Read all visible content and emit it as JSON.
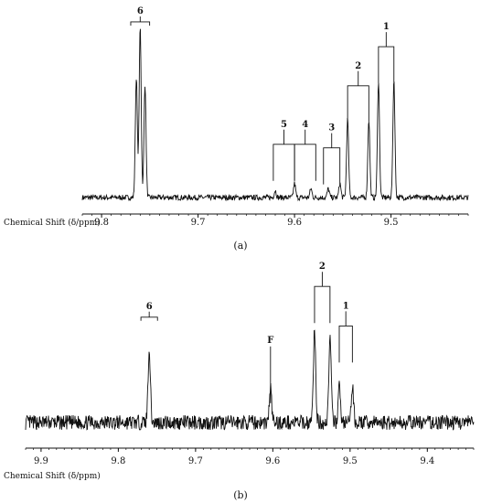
{
  "chart_data": [
    {
      "type": "line",
      "panel_label": "(a)",
      "xlabel": "Chemical Shift (δ/ppm)",
      "xlim": [
        9.82,
        9.42
      ],
      "x_reversed": true,
      "ticks": [
        "9.8",
        "9.7",
        "9.6",
        "9.5"
      ],
      "tick_values": [
        9.8,
        9.7,
        9.6,
        9.5
      ],
      "y_units": "relative intensity",
      "noise_level": 0.015,
      "peaks": [
        {
          "x": 9.764,
          "h": 0.68
        },
        {
          "x": 9.76,
          "h": 0.96
        },
        {
          "x": 9.755,
          "h": 0.64
        },
        {
          "x": 9.62,
          "h": 0.04
        },
        {
          "x": 9.6,
          "h": 0.08
        },
        {
          "x": 9.583,
          "h": 0.05
        },
        {
          "x": 9.565,
          "h": 0.05
        },
        {
          "x": 9.553,
          "h": 0.08
        },
        {
          "x": 9.545,
          "h": 0.44
        },
        {
          "x": 9.523,
          "h": 0.44
        },
        {
          "x": 9.513,
          "h": 0.66
        },
        {
          "x": 9.497,
          "h": 0.66
        }
      ],
      "annotations": [
        {
          "label": "6",
          "x1": 9.766,
          "x2": 9.754,
          "level": 0.99,
          "style": "bracket"
        },
        {
          "label": "5",
          "x1": 9.622,
          "x2": 9.6,
          "level": 0.3,
          "style": "box"
        },
        {
          "label": "4",
          "x1": 9.6,
          "x2": 9.578,
          "level": 0.3,
          "style": "box"
        },
        {
          "label": "3",
          "x1": 9.57,
          "x2": 9.553,
          "level": 0.28,
          "style": "box"
        },
        {
          "label": "2",
          "x1": 9.545,
          "x2": 9.523,
          "level": 0.63,
          "style": "box"
        },
        {
          "label": "1",
          "x1": 9.513,
          "x2": 9.497,
          "level": 0.85,
          "style": "box"
        }
      ]
    },
    {
      "type": "line",
      "panel_label": "(b)",
      "xlabel": "Chemical Shift (δ/ppm)",
      "xlim": [
        9.92,
        9.34
      ],
      "x_reversed": true,
      "ticks": [
        "9.9",
        "9.8",
        "9.7",
        "9.6",
        "9.5",
        "9.4"
      ],
      "tick_values": [
        9.9,
        9.8,
        9.7,
        9.6,
        9.5,
        9.4
      ],
      "y_units": "relative intensity",
      "noise_level": 0.05,
      "peaks": [
        {
          "x": 9.76,
          "h": 0.5
        },
        {
          "x": 9.603,
          "h": 0.23
        },
        {
          "x": 9.546,
          "h": 0.62
        },
        {
          "x": 9.526,
          "h": 0.58
        },
        {
          "x": 9.514,
          "h": 0.24
        },
        {
          "x": 9.497,
          "h": 0.24
        }
      ],
      "annotations": [
        {
          "label": "6",
          "x1": 9.766,
          "x2": 9.754,
          "level": 0.72,
          "style": "bracket"
        },
        {
          "label": "F",
          "x1": 9.603,
          "x2": 9.603,
          "level": 0.52,
          "style": "line"
        },
        {
          "label": "2",
          "x1": 9.546,
          "x2": 9.526,
          "level": 0.93,
          "style": "box"
        },
        {
          "label": "1",
          "x1": 9.514,
          "x2": 9.497,
          "level": 0.66,
          "style": "box"
        }
      ]
    }
  ]
}
